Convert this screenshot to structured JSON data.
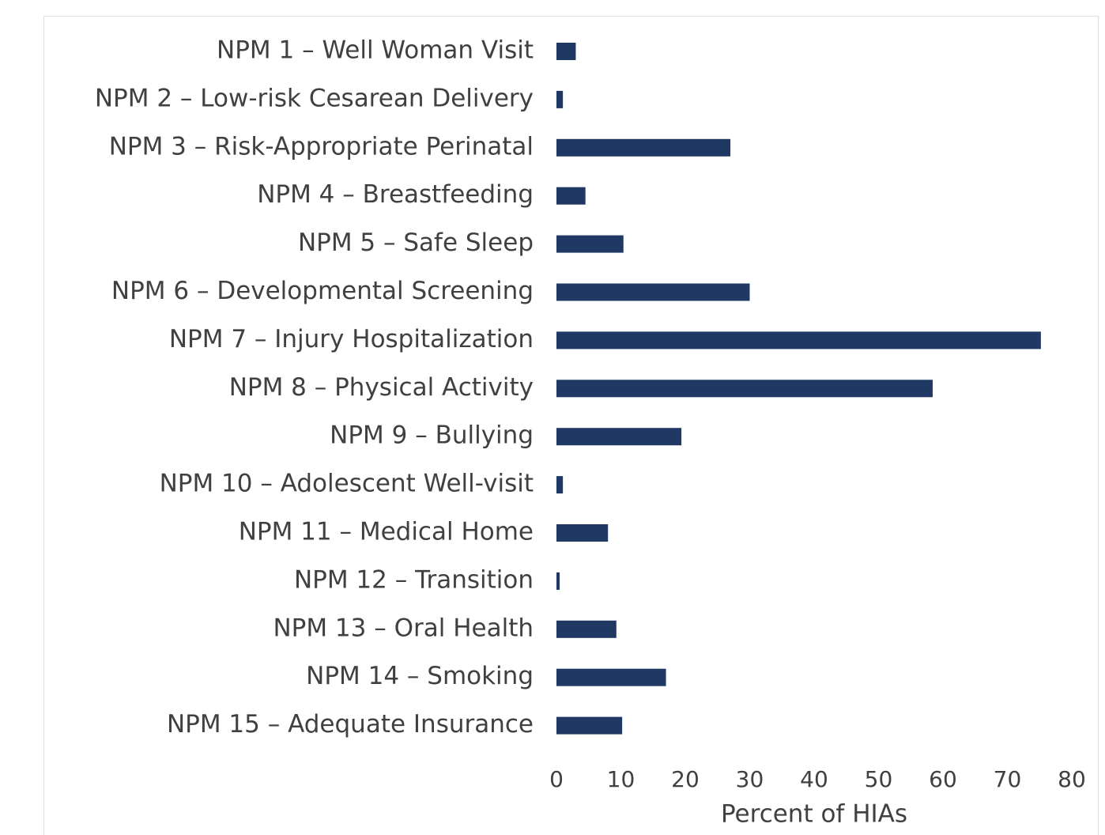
{
  "chart_data": {
    "type": "bar",
    "orientation": "horizontal",
    "categories": [
      "NPM 1 – Well Woman Visit",
      "NPM 2 – Low-risk Cesarean Delivery",
      "NPM 3 – Risk-Appropriate Perinatal",
      "NPM 4 – Breastfeeding",
      "NPM 5 – Safe Sleep",
      "NPM 6 – Developmental Screening",
      "NPM 7 – Injury Hospitalization",
      "NPM 8 – Physical Activity",
      "NPM 9 – Bullying",
      "NPM 10 – Adolescent Well-visit",
      "NPM 11 – Medical Home",
      "NPM 12 – Transition",
      "NPM 13 – Oral Health",
      "NPM 14 – Smoking",
      "NPM 15 – Adequate Insurance"
    ],
    "values": [
      3,
      1,
      27,
      4.5,
      10.4,
      30,
      75.2,
      58.4,
      19.4,
      1,
      8,
      0.5,
      9.3,
      17,
      10.2
    ],
    "color": "#203864",
    "xlabel": "Percent of HIAs",
    "xlim": [
      0,
      80
    ],
    "xticks": [
      0,
      10,
      20,
      30,
      40,
      50,
      60,
      70,
      80
    ],
    "grid": false
  }
}
